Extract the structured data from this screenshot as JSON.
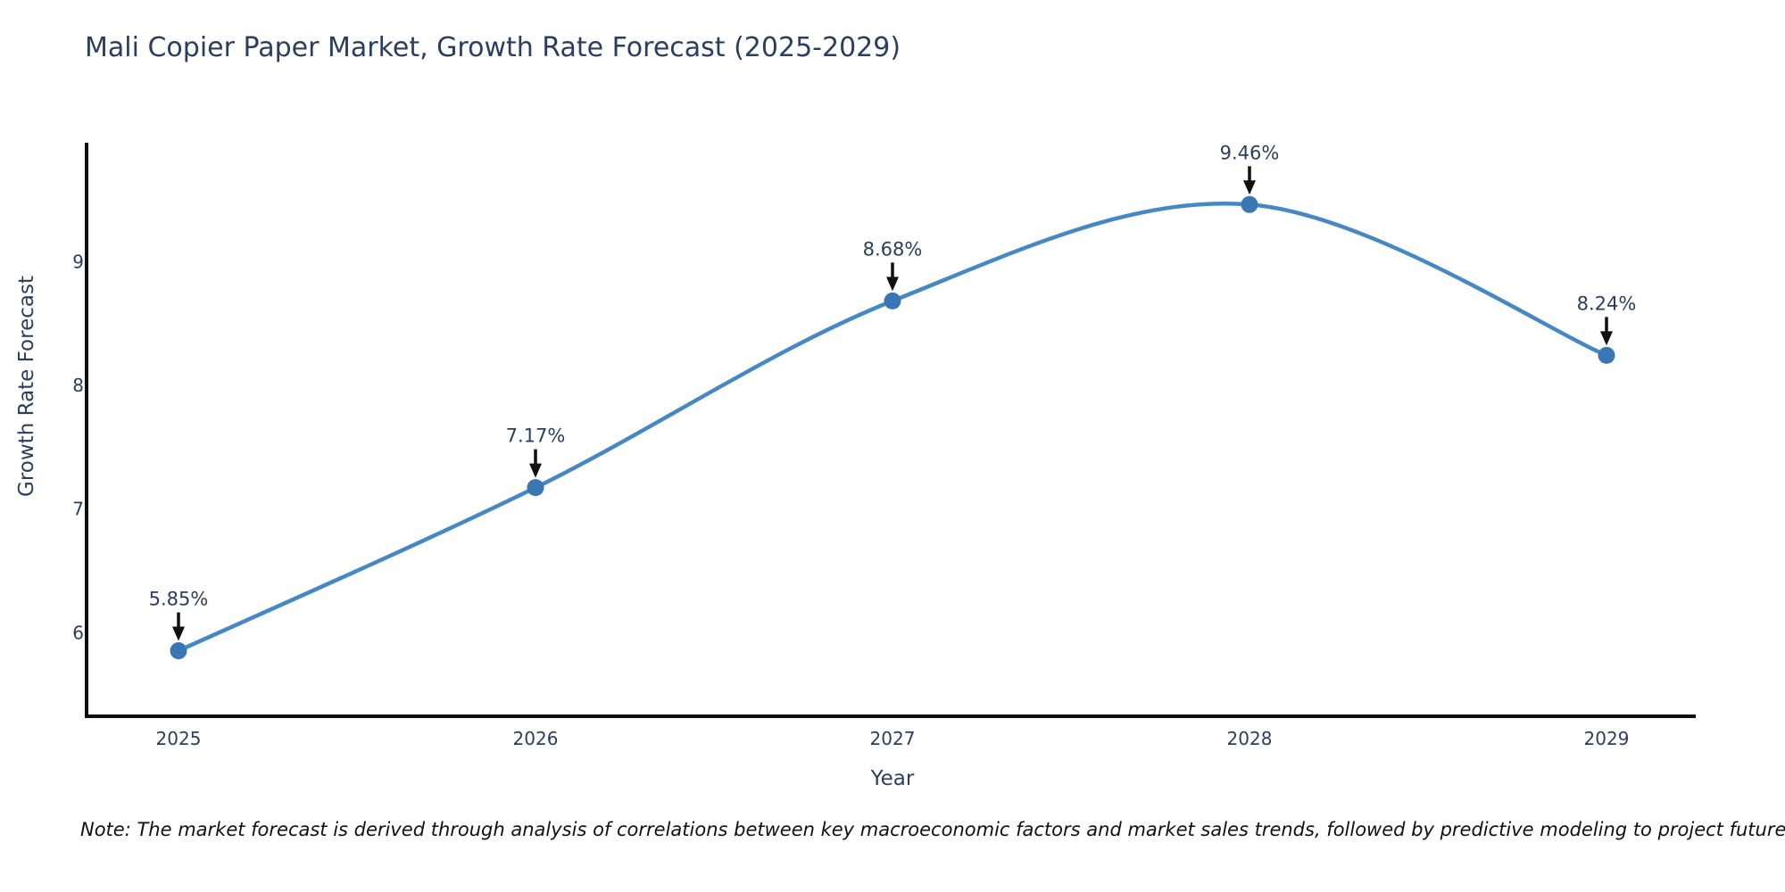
{
  "title": "Mali Copier Paper Market, Growth Rate Forecast (2025-2029)",
  "note": "Note: The market forecast is derived through analysis of correlations between key macroeconomic factors and market sales trends, followed by predictive modeling to project future sales.",
  "chart_data": {
    "type": "line",
    "title": "Mali Copier Paper Market, Growth Rate Forecast (2025-2029)",
    "x": [
      "2025",
      "2026",
      "2027",
      "2028",
      "2029"
    ],
    "values": [
      5.85,
      7.17,
      8.68,
      9.46,
      8.24
    ],
    "point_labels": [
      "5.85%",
      "7.17%",
      "8.68%",
      "9.46%",
      "8.24%"
    ],
    "xlabel": "Year",
    "ylabel": "Growth Rate Forecast",
    "ylim": [
      5.32,
      9.96
    ],
    "yticks": [
      6,
      7,
      8,
      9
    ],
    "line_shape": "spline",
    "grid": false,
    "legend": false,
    "colors": {
      "line": "#4688c4",
      "marker": "#3876b4",
      "axis": "#0f0f0f",
      "arrow": "#111111",
      "text": "#2a3f5f"
    }
  }
}
